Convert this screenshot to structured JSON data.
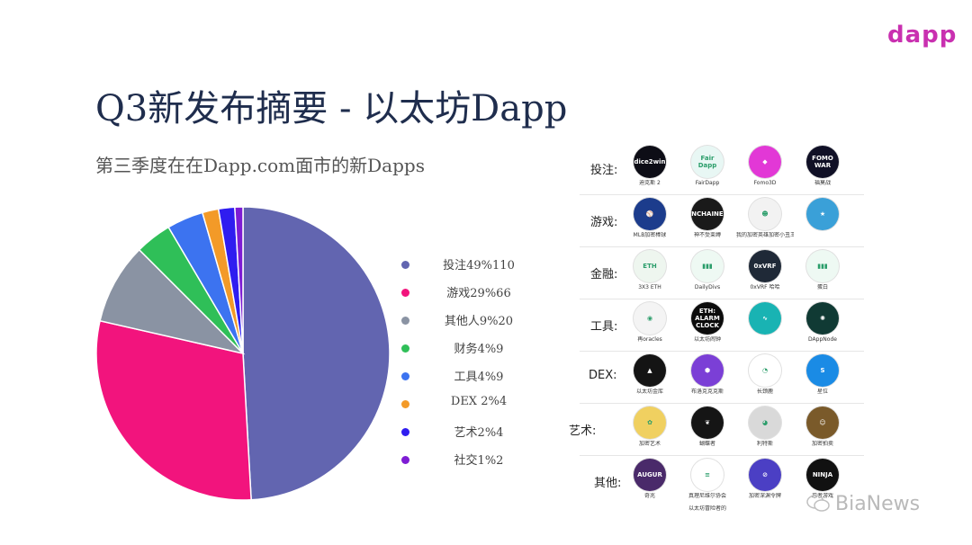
{
  "brand": {
    "logo": "dapp"
  },
  "title": "Q3新发布摘要 - 以太坊Dapp",
  "subtitle": "第三季度在在Dapp.com面市的新Dapps",
  "chart_data": {
    "type": "pie",
    "title": "",
    "legend_position": "right",
    "labels": [
      "投注49%110",
      "游戏29%66",
      "其他人9%20",
      "财务4%9",
      "工具4%9",
      "DEX 2%4",
      "艺术2%4",
      "社交1%2"
    ],
    "values": [
      110,
      66,
      20,
      9,
      9,
      4,
      4,
      2
    ],
    "percents": [
      49,
      29,
      9,
      4,
      4,
      2,
      2,
      1
    ],
    "colors": [
      "#6265b0",
      "#f2147d",
      "#8a93a3",
      "#2fbf58",
      "#3c73f0",
      "#f39a28",
      "#2f1df0",
      "#7e1cd4"
    ]
  },
  "categories": [
    {
      "name": "投注:",
      "apps": [
        {
          "label": "迪克斯 2",
          "icon": "dice2win-logo",
          "color": "#0d0d16",
          "glyph": "dice2win"
        },
        {
          "label": "FairDapp",
          "icon": "fairdapp-wings",
          "color": "#e8f7f4",
          "glyph": "Fair Dapp"
        },
        {
          "label": "Fomo3D",
          "icon": "fomo3d-gem",
          "color": "#e238d6",
          "glyph": "◆"
        },
        {
          "label": "福莫战",
          "icon": "fomo-war-logo",
          "color": "#101026",
          "glyph": "FOMO WAR"
        }
      ]
    },
    {
      "name": "游戏:",
      "apps": [
        {
          "label": "MLB加密棒球",
          "icon": "baseball-player",
          "color": "#1c3c8c",
          "glyph": "⚾"
        },
        {
          "label": "神不受束缚",
          "icon": "gods-unchained-logo",
          "color": "#1a1a1a",
          "glyph": "UNCHAINED"
        },
        {
          "label": "我的加密英雄加密小丑王",
          "icon": "crypto-hero",
          "color": "#f2f2f2",
          "glyph": "☻"
        },
        {
          "label": "",
          "icon": "anime-character",
          "color": "#3aa0d8",
          "glyph": "★"
        }
      ]
    },
    {
      "name": "金融:",
      "apps": [
        {
          "label": "3X3 ETH",
          "icon": "eth-chip",
          "color": "#eef6ef",
          "glyph": "ETH"
        },
        {
          "label": "DailyDivs",
          "icon": "bar-chart-green",
          "color": "#eef9f3",
          "glyph": "▮▮▮"
        },
        {
          "label": "0xVRF 哈哈",
          "icon": "0xvrf-logo",
          "color": "#1f2937",
          "glyph": "0xVRF"
        },
        {
          "label": "蛋白",
          "icon": "bar-chart-green",
          "color": "#eef9f3",
          "glyph": "▮▮▮"
        }
      ]
    },
    {
      "name": "工具:",
      "apps": [
        {
          "label": "再oracles",
          "icon": "eye-logo",
          "color": "#f4f4f4",
          "glyph": "◉"
        },
        {
          "label": "以太坊闹钟",
          "icon": "eth-alarm-clock",
          "color": "#0c0c0c",
          "glyph": "ETH: ALARM CLOCK"
        },
        {
          "label": "",
          "icon": "wave-logo",
          "color": "#19b3b3",
          "glyph": "∿"
        },
        {
          "label": "DAppNode",
          "icon": "dappnode-logo",
          "color": "#103a34",
          "glyph": "✺"
        }
      ]
    },
    {
      "name": "DEX:",
      "apps": [
        {
          "label": "以太坊金库",
          "icon": "gold-triangle",
          "color": "#141414",
          "glyph": "▲"
        },
        {
          "label": "布洛克克克斯",
          "icon": "cube-logo",
          "color": "#7b3fd6",
          "glyph": "⬢"
        },
        {
          "label": "长颈鹿",
          "icon": "red-swirl",
          "color": "#ffffff",
          "glyph": "◔"
        },
        {
          "label": "星位",
          "icon": "starbitex-logo",
          "color": "#1a8be5",
          "glyph": "S"
        }
      ]
    },
    {
      "name": "艺术:",
      "apps": [
        {
          "label": "加密艺术",
          "icon": "colorful-art",
          "color": "#f0d060",
          "glyph": "✿"
        },
        {
          "label": "蝴蝶者",
          "icon": "butterfly-logo",
          "color": "#151515",
          "glyph": "❦"
        },
        {
          "label": "利特斯",
          "icon": "raccoon-art",
          "color": "#d9d9d9",
          "glyph": "◕"
        },
        {
          "label": "加密拍卖",
          "icon": "mona-lisa",
          "color": "#7a5a2a",
          "glyph": "☺"
        }
      ]
    },
    {
      "name": "其他:",
      "apps": [
        {
          "label": "奇兆",
          "icon": "augur-logo",
          "color": "#4a2a6a",
          "glyph": "AUGUR"
        },
        {
          "label": "真理尼维尔协会",
          "icon": "text-badge",
          "color": "#ffffff",
          "glyph": "≡"
        },
        {
          "label": "加密深渊令牌",
          "icon": "rocket-circle",
          "color": "#4b3fc4",
          "glyph": "⊘"
        },
        {
          "label": "忍者游戏",
          "icon": "ninja-logo",
          "color": "#111111",
          "glyph": "NINJA"
        }
      ]
    }
  ],
  "extra_caption": "以太坊冒险者的",
  "watermark": "BiaNews"
}
